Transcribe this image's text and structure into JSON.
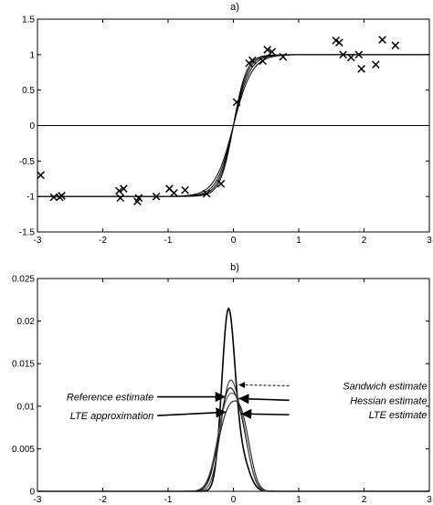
{
  "chart_data": [
    {
      "type": "scatter",
      "title": "a)",
      "xlim": [
        -3,
        3
      ],
      "ylim": [
        -1.5,
        1.5
      ],
      "xticks": [
        "-3",
        "-2",
        "-1",
        "0",
        "1",
        "2",
        "3"
      ],
      "yticks": [
        "1.5",
        "1",
        "0.5",
        "0",
        "-0.5",
        "-1",
        "-1.5"
      ],
      "points": [
        {
          "x": -2.95,
          "y": -0.7
        },
        {
          "x": -2.75,
          "y": -1.01
        },
        {
          "x": -2.66,
          "y": -1.01
        },
        {
          "x": -2.63,
          "y": -0.99
        },
        {
          "x": -1.75,
          "y": -0.92
        },
        {
          "x": -1.73,
          "y": -1.02
        },
        {
          "x": -1.68,
          "y": -0.89
        },
        {
          "x": -1.47,
          "y": -1.07
        },
        {
          "x": -1.45,
          "y": -1.02
        },
        {
          "x": -1.18,
          "y": -1.0
        },
        {
          "x": -0.98,
          "y": -0.89
        },
        {
          "x": -0.91,
          "y": -0.95
        },
        {
          "x": -0.74,
          "y": -0.91
        },
        {
          "x": -0.41,
          "y": -0.96
        },
        {
          "x": -0.19,
          "y": -0.82
        },
        {
          "x": 0.05,
          "y": 0.33
        },
        {
          "x": 0.24,
          "y": 0.88
        },
        {
          "x": 0.29,
          "y": 0.92
        },
        {
          "x": 0.45,
          "y": 0.91
        },
        {
          "x": 0.52,
          "y": 1.07
        },
        {
          "x": 0.59,
          "y": 1.04
        },
        {
          "x": 0.76,
          "y": 0.97
        },
        {
          "x": 1.57,
          "y": 1.2
        },
        {
          "x": 1.62,
          "y": 1.17
        },
        {
          "x": 1.68,
          "y": 1.0
        },
        {
          "x": 1.8,
          "y": 0.96
        },
        {
          "x": 1.92,
          "y": 1.0
        },
        {
          "x": 1.96,
          "y": 0.8
        },
        {
          "x": 2.18,
          "y": 0.86
        },
        {
          "x": 2.28,
          "y": 1.21
        },
        {
          "x": 2.48,
          "y": 1.13
        }
      ],
      "curve_steepness": [
        7,
        8,
        9,
        10
      ]
    },
    {
      "type": "line",
      "title": "b)",
      "xlim": [
        -3,
        3
      ],
      "ylim": [
        0,
        0.025
      ],
      "xticks": [
        "-3",
        "-2",
        "-1",
        "0",
        "1",
        "2",
        "3"
      ],
      "yticks": [
        "0.025",
        "0.02",
        "0.015",
        "0.01",
        "0.005",
        "0"
      ],
      "series": [
        {
          "peak": 0.0205,
          "center": -0.08,
          "width": 0.1,
          "shoulder": 0.0038,
          "shoulder_center": 0.12
        },
        {
          "peak": 0.0117,
          "center": -0.07,
          "width": 0.13,
          "shoulder": 0.0052,
          "shoulder_center": 0.14
        },
        {
          "peak": 0.0108,
          "center": -0.09,
          "width": 0.14,
          "shoulder": 0.0055,
          "shoulder_center": 0.13
        },
        {
          "peak": 0.0098,
          "center": -0.1,
          "width": 0.15,
          "shoulder": 0.006,
          "shoulder_center": 0.12
        },
        {
          "peak": 0.009,
          "center": -0.08,
          "width": 0.16,
          "shoulder": 0.0058,
          "shoulder_center": 0.15
        }
      ],
      "annotations": [
        {
          "text": "Sandwich estimate",
          "x": 0.91,
          "y": 0.0124,
          "tx": 0.08,
          "ty": 0.0125,
          "side": "right",
          "dashed": true
        },
        {
          "text": "Hessian estimate",
          "x": 0.91,
          "y": 0.0107,
          "tx": 0.08,
          "ty": 0.0109,
          "side": "right",
          "dashed": false
        },
        {
          "text": "LTE estimate",
          "x": 0.91,
          "y": 0.009,
          "tx": 0.12,
          "ty": 0.0091,
          "side": "right",
          "dashed": false
        },
        {
          "text": "Reference estimate",
          "x": -1.22,
          "y": 0.0111,
          "tx": -0.12,
          "ty": 0.0111,
          "side": "left",
          "dashed": false
        },
        {
          "text": "LTE approximation",
          "x": -1.22,
          "y": 0.0089,
          "tx": -0.11,
          "ty": 0.0093,
          "side": "left",
          "dashed": false
        }
      ]
    }
  ]
}
